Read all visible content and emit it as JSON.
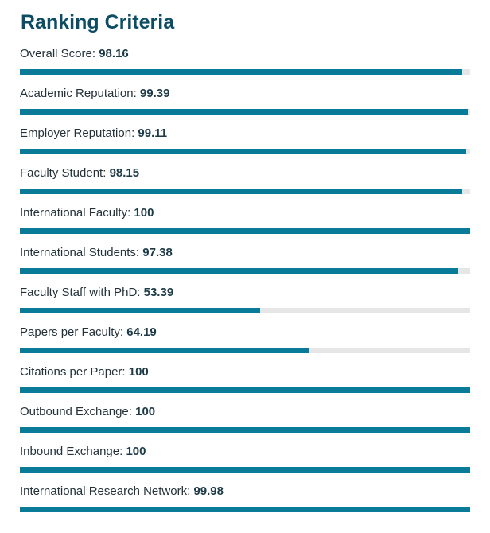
{
  "title": "Ranking Criteria",
  "colors": {
    "title": "#0d4d64",
    "bar_fill": "#0a7a99",
    "bar_track": "#e6e6e6"
  },
  "criteria": [
    {
      "label": "Overall Score:",
      "value_text": "98.16",
      "value": 98.16
    },
    {
      "label": "Academic Reputation:",
      "value_text": "99.39",
      "value": 99.39
    },
    {
      "label": "Employer Reputation:",
      "value_text": "99.11",
      "value": 99.11
    },
    {
      "label": "Faculty Student:",
      "value_text": "98.15",
      "value": 98.15
    },
    {
      "label": "International Faculty:",
      "value_text": "100",
      "value": 100
    },
    {
      "label": "International Students:",
      "value_text": "97.38",
      "value": 97.38
    },
    {
      "label": "Faculty Staff with PhD:",
      "value_text": "53.39",
      "value": 53.39
    },
    {
      "label": "Papers per Faculty:",
      "value_text": "64.19",
      "value": 64.19
    },
    {
      "label": "Citations per Paper:",
      "value_text": "100",
      "value": 100
    },
    {
      "label": "Outbound Exchange:",
      "value_text": "100",
      "value": 100
    },
    {
      "label": "Inbound Exchange:",
      "value_text": "100",
      "value": 100
    },
    {
      "label": "International Research Network:",
      "value_text": "99.98",
      "value": 99.98
    }
  ]
}
